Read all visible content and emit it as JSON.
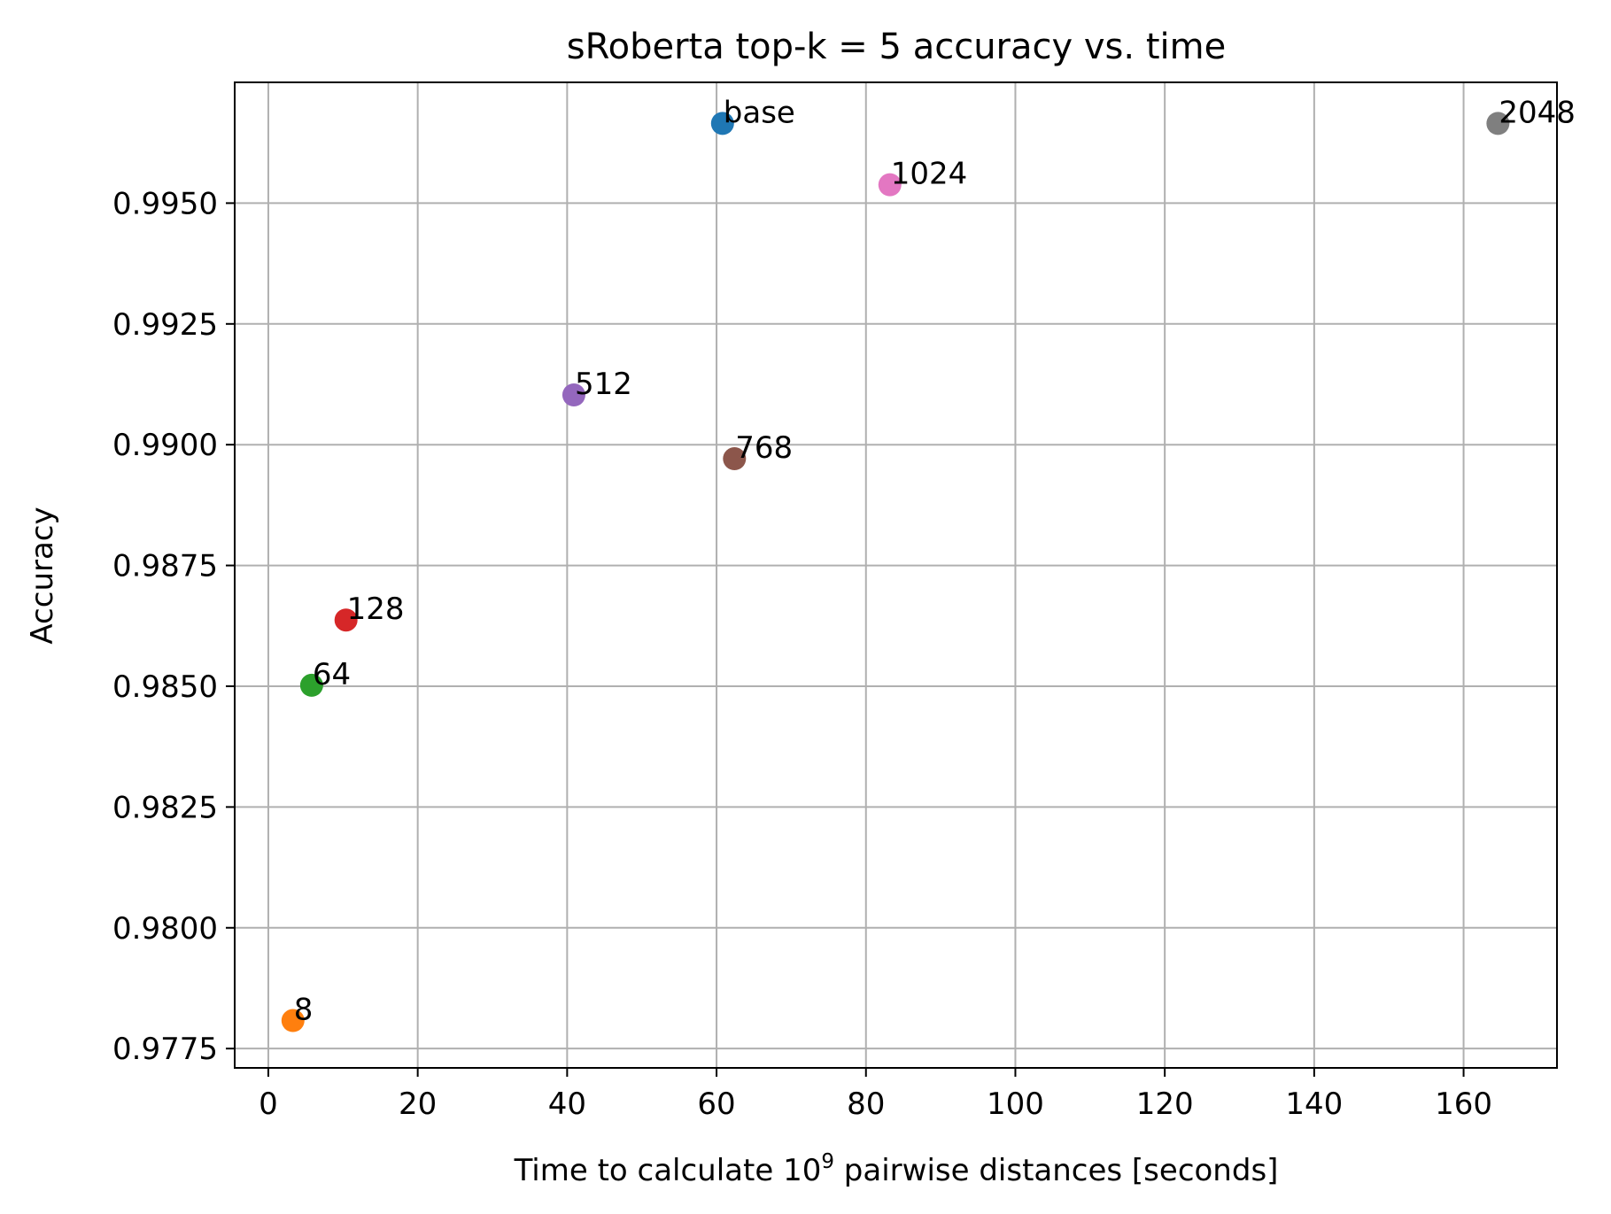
{
  "chart_data": {
    "type": "scatter",
    "title": "sRoberta top-k = 5 accuracy vs. time",
    "xlabel_prefix": "Time to calculate 10",
    "xlabel_superscript": "9",
    "xlabel_suffix": " pairwise distances [seconds]",
    "ylabel": "Accuracy",
    "xlim": [
      -4.5,
      172.5
    ],
    "ylim": [
      0.9771,
      0.9975
    ],
    "grid": true,
    "xticks": [
      0,
      20,
      40,
      60,
      80,
      100,
      120,
      140,
      160
    ],
    "xtick_labels": [
      "0",
      "20",
      "40",
      "60",
      "80",
      "100",
      "120",
      "140",
      "160"
    ],
    "yticks": [
      0.9775,
      0.98,
      0.9825,
      0.985,
      0.9875,
      0.99,
      0.9925,
      0.995
    ],
    "ytick_labels": [
      "0.9775",
      "0.9800",
      "0.9825",
      "0.9850",
      "0.9875",
      "0.9900",
      "0.9925",
      "0.9950"
    ],
    "points": [
      {
        "label": "base",
        "x": 60.8,
        "y": 0.99665,
        "color": "#1f77b4"
      },
      {
        "label": "8",
        "x": 3.3,
        "y": 0.97808,
        "color": "#ff7f0e"
      },
      {
        "label": "64",
        "x": 5.8,
        "y": 0.98502,
        "color": "#2ca02c"
      },
      {
        "label": "128",
        "x": 10.4,
        "y": 0.98637,
        "color": "#d62728"
      },
      {
        "label": "512",
        "x": 40.9,
        "y": 0.99103,
        "color": "#9467bd"
      },
      {
        "label": "768",
        "x": 62.4,
        "y": 0.98971,
        "color": "#8c564b"
      },
      {
        "label": "1024",
        "x": 83.2,
        "y": 0.99538,
        "color": "#e377c2"
      },
      {
        "label": "2048",
        "x": 164.6,
        "y": 0.99665,
        "color": "#7f7f7f"
      }
    ]
  }
}
